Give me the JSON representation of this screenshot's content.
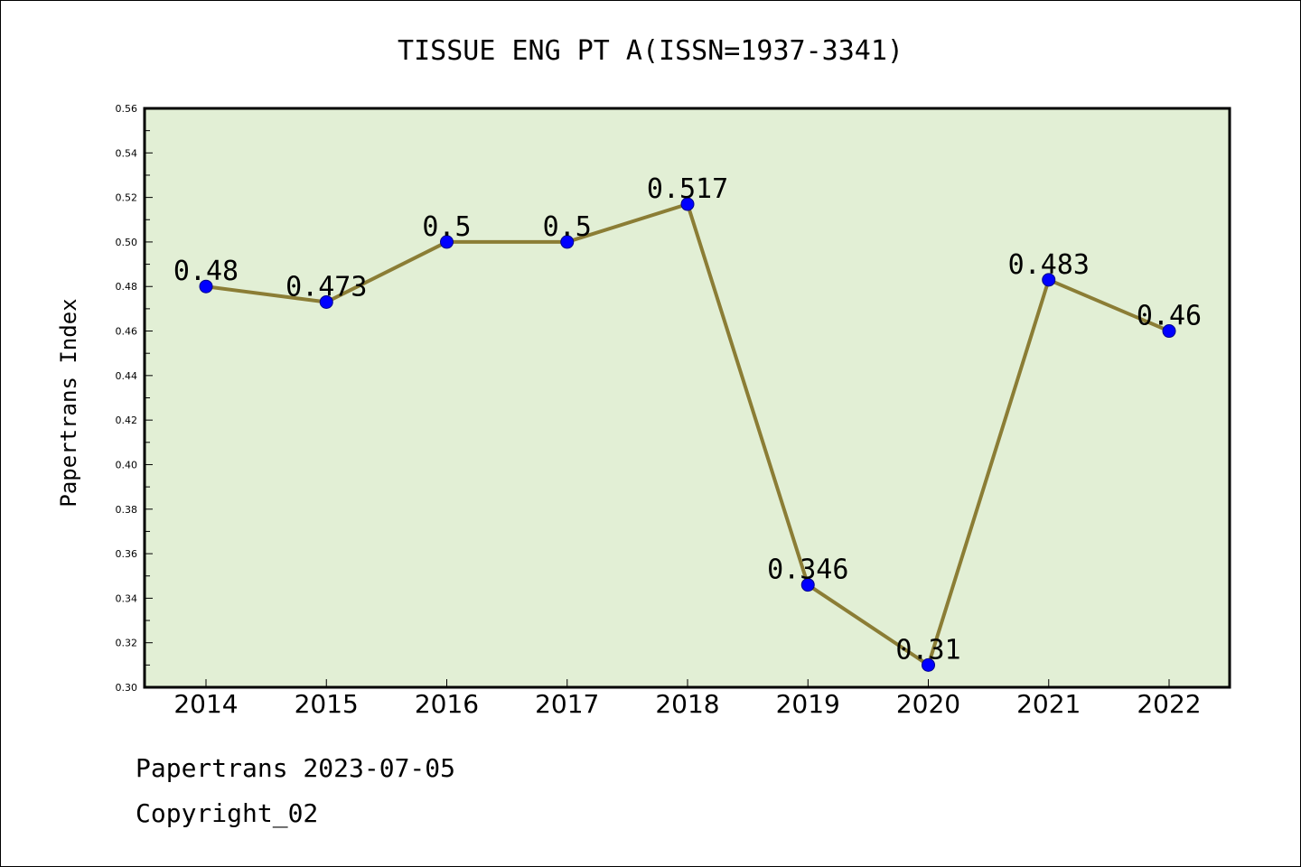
{
  "chart_data": {
    "type": "line",
    "title": "TISSUE ENG PT A(ISSN=1937-3341)",
    "xlabel": "",
    "ylabel": "Papertrans Index",
    "categories": [
      "2014",
      "2015",
      "2016",
      "2017",
      "2018",
      "2019",
      "2020",
      "2021",
      "2022"
    ],
    "series": [
      {
        "values": [
          0.48,
          0.473,
          0.5,
          0.5,
          0.517,
          0.346,
          0.31,
          0.483,
          0.46
        ]
      }
    ],
    "data_labels": [
      "0.48",
      "0.473",
      "0.5",
      "0.5",
      "0.517",
      "0.346",
      "0.31",
      "0.483",
      "0.46"
    ],
    "ylim": [
      0.3,
      0.56
    ],
    "yticks": [
      "0.30",
      "0.32",
      "0.34",
      "0.36",
      "0.38",
      "0.40",
      "0.42",
      "0.44",
      "0.46",
      "0.48",
      "0.50",
      "0.52",
      "0.54",
      "0.56"
    ],
    "grid": false,
    "legend": "none",
    "colors": {
      "plot_background": "#e2efd5",
      "line": "#8b7d35",
      "marker": "#0000ff"
    }
  },
  "footer": {
    "source": "Papertrans 2023-07-05",
    "copyright": "Copyright_02"
  }
}
